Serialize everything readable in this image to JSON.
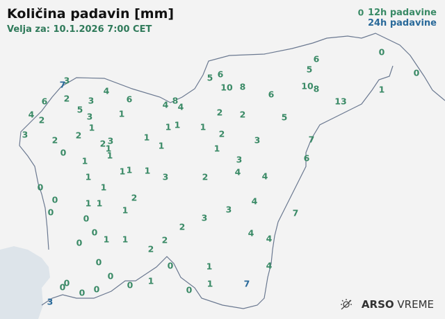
{
  "header": {
    "title": "Količina padavin [mm]",
    "valid_for": "Velja za: 10.1.2026 7:00 CET"
  },
  "legend": {
    "items": [
      {
        "label": "12h padavine",
        "color": "#3a8a66"
      },
      {
        "label": "24h padavine",
        "color": "#2a6a9a"
      }
    ]
  },
  "brand": {
    "name_bold": "ARSO",
    "name_light": "VREME",
    "icon": "sun-cloud-icon"
  },
  "colors": {
    "h12": "#3a8a66",
    "h24": "#2a6a9a",
    "sea": "#dde4ea",
    "land": "#f3f3f3",
    "border": "#6a7890"
  },
  "stations": [
    {
      "v": "0",
      "t": "12h"
    },
    {
      "v": "3",
      "t": "12h"
    },
    {
      "v": "7",
      "t": "24h"
    },
    {
      "v": "4",
      "t": "12h"
    },
    {
      "v": "6",
      "t": "12h"
    },
    {
      "v": "6",
      "t": "12h"
    },
    {
      "v": "2",
      "t": "12h"
    },
    {
      "v": "3",
      "t": "12h"
    },
    {
      "v": "4",
      "t": "12h"
    },
    {
      "v": "8",
      "t": "12h"
    },
    {
      "v": "4",
      "t": "12h"
    },
    {
      "v": "4",
      "t": "12h"
    },
    {
      "v": "2",
      "t": "12h"
    },
    {
      "v": "5",
      "t": "12h"
    },
    {
      "v": "3",
      "t": "12h"
    },
    {
      "v": "1",
      "t": "12h"
    },
    {
      "v": "1",
      "t": "12h"
    },
    {
      "v": "3",
      "t": "12h"
    },
    {
      "v": "2",
      "t": "12h"
    },
    {
      "v": "2",
      "t": "12h"
    },
    {
      "v": "2",
      "t": "12h"
    },
    {
      "v": "3",
      "t": "12h"
    },
    {
      "v": "1",
      "t": "12h"
    },
    {
      "v": "1",
      "t": "12h"
    },
    {
      "v": "0",
      "t": "12h"
    },
    {
      "v": "1",
      "t": "12h"
    },
    {
      "v": "1",
      "t": "12h"
    },
    {
      "v": "1",
      "t": "12h"
    },
    {
      "v": "1",
      "t": "12h"
    },
    {
      "v": "1",
      "t": "12h"
    },
    {
      "v": "1",
      "t": "12h"
    },
    {
      "v": "1",
      "t": "12h"
    },
    {
      "v": "1",
      "t": "12h"
    },
    {
      "v": "3",
      "t": "12h"
    },
    {
      "v": "1",
      "t": "12h"
    },
    {
      "v": "1",
      "t": "12h"
    },
    {
      "v": "0",
      "t": "12h"
    },
    {
      "v": "0",
      "t": "12h"
    },
    {
      "v": "0",
      "t": "12h"
    },
    {
      "v": "1",
      "t": "12h"
    },
    {
      "v": "1",
      "t": "12h"
    },
    {
      "v": "2",
      "t": "12h"
    },
    {
      "v": "1",
      "t": "12h"
    },
    {
      "v": "0",
      "t": "12h"
    },
    {
      "v": "0",
      "t": "12h"
    },
    {
      "v": "0",
      "t": "12h"
    },
    {
      "v": "1",
      "t": "12h"
    },
    {
      "v": "1",
      "t": "12h"
    },
    {
      "v": "2",
      "t": "12h"
    },
    {
      "v": "2",
      "t": "12h"
    },
    {
      "v": "2",
      "t": "12h"
    },
    {
      "v": "3",
      "t": "12h"
    },
    {
      "v": "3",
      "t": "12h"
    },
    {
      "v": "4",
      "t": "12h"
    },
    {
      "v": "4",
      "t": "12h"
    },
    {
      "v": "4",
      "t": "12h"
    },
    {
      "v": "0",
      "t": "12h"
    },
    {
      "v": "0",
      "t": "12h"
    },
    {
      "v": "0",
      "t": "12h"
    },
    {
      "v": "0",
      "t": "12h"
    },
    {
      "v": "0",
      "t": "12h"
    },
    {
      "v": "0",
      "t": "12h"
    },
    {
      "v": "0",
      "t": "12h"
    },
    {
      "v": "1",
      "t": "12h"
    },
    {
      "v": "0",
      "t": "12h"
    },
    {
      "v": "1",
      "t": "12h"
    },
    {
      "v": "1",
      "t": "12h"
    },
    {
      "v": "0",
      "t": "12h"
    },
    {
      "v": "7",
      "t": "24h"
    },
    {
      "v": "4",
      "t": "12h"
    },
    {
      "v": "3",
      "t": "24h"
    },
    {
      "v": "5",
      "t": "12h"
    },
    {
      "v": "6",
      "t": "12h"
    },
    {
      "v": "10",
      "t": "12h"
    },
    {
      "v": "8",
      "t": "12h"
    },
    {
      "v": "6",
      "t": "12h"
    },
    {
      "v": "10",
      "t": "12h"
    },
    {
      "v": "8",
      "t": "12h"
    },
    {
      "v": "5",
      "t": "12h"
    },
    {
      "v": "6",
      "t": "12h"
    },
    {
      "v": "0",
      "t": "12h"
    },
    {
      "v": "0",
      "t": "12h"
    },
    {
      "v": "1",
      "t": "12h"
    },
    {
      "v": "13",
      "t": "12h"
    },
    {
      "v": "2",
      "t": "12h"
    },
    {
      "v": "2",
      "t": "12h"
    },
    {
      "v": "5",
      "t": "12h"
    },
    {
      "v": "1",
      "t": "12h"
    },
    {
      "v": "2",
      "t": "12h"
    },
    {
      "v": "3",
      "t": "12h"
    },
    {
      "v": "1",
      "t": "12h"
    },
    {
      "v": "7",
      "t": "12h"
    },
    {
      "v": "6",
      "t": "12h"
    },
    {
      "v": "3",
      "t": "12h"
    },
    {
      "v": "4",
      "t": "12h"
    },
    {
      "v": "4",
      "t": "12h"
    },
    {
      "v": "2",
      "t": "12h"
    },
    {
      "v": "7",
      "t": "12h"
    }
  ]
}
